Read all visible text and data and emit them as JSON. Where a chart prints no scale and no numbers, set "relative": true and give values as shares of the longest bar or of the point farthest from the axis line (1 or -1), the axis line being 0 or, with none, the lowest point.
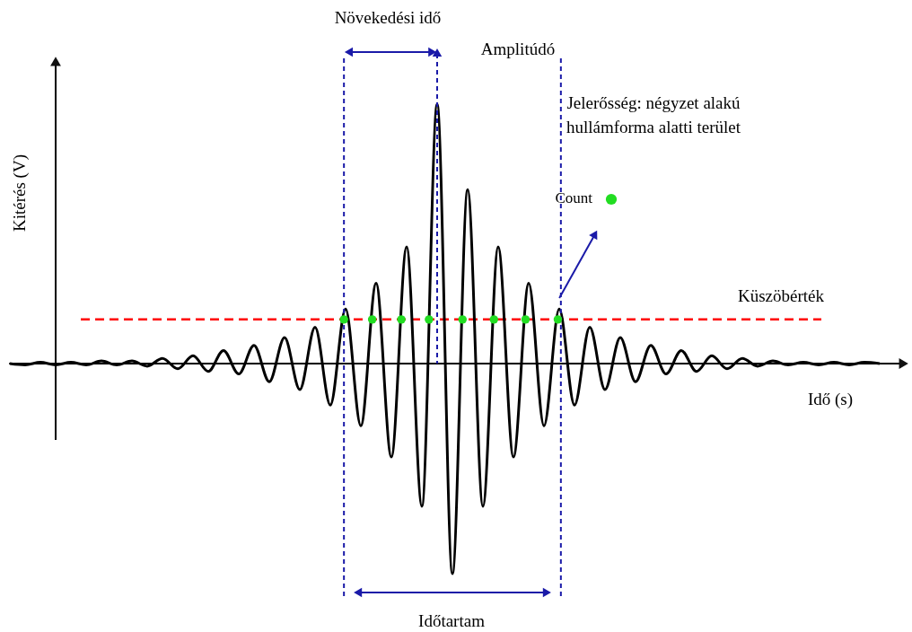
{
  "chart_data": {
    "type": "line",
    "relative": true,
    "categories": [
      null,
      null,
      null,
      null,
      null,
      null,
      null,
      null,
      null,
      null,
      null,
      null,
      null,
      null,
      null,
      null,
      null,
      null,
      null,
      null,
      null,
      null,
      null,
      null,
      null,
      null,
      null,
      null,
      null,
      null,
      null,
      null,
      null,
      null,
      null,
      null,
      null,
      null,
      null,
      null,
      null,
      null,
      null,
      null,
      null,
      null,
      null,
      null,
      null,
      null,
      null,
      null,
      null,
      null,
      null,
      null,
      null,
      null
    ],
    "series": [
      {
        "color": "#000000",
        "values": [
          0,
          -0.005,
          0.005,
          -0.005,
          0.005,
          -0.005,
          0.01,
          -0.005,
          0.01,
          -0.01,
          0.02,
          -0.02,
          0.03,
          -0.03,
          0.05,
          -0.04,
          0.07,
          -0.07,
          0.1,
          -0.1,
          0.14,
          -0.16,
          0.21,
          -0.24,
          0.31,
          -0.36,
          0.45,
          -0.55,
          1,
          -0.81,
          0.67,
          -0.55,
          0.45,
          -0.36,
          0.31,
          -0.24,
          0.21,
          -0.16,
          0.14,
          -0.1,
          0.1,
          -0.07,
          0.07,
          -0.04,
          0.05,
          -0.03,
          0.03,
          -0.02,
          0.02,
          -0.01,
          0.01,
          -0.005,
          0.005,
          -0.005,
          0.005,
          -0.005,
          0.005,
          0
        ]
      }
    ],
    "xlabel": "Idő (s)",
    "ylabel": "Kitérés (V)",
    "ref_lines": [
      {
        "axis": "y",
        "value": 0.17,
        "label": "Küszöbérték",
        "color": "#ff0000",
        "line_style": "dashed"
      }
    ],
    "annotations": [
      "Növekedési idő",
      "Amplitúdó",
      "Jelerősség: négyzet alakú\nhullámforma alatti terület",
      "Count",
      "Időtartam"
    ],
    "marker": "none",
    "line_style": "solid"
  }
}
